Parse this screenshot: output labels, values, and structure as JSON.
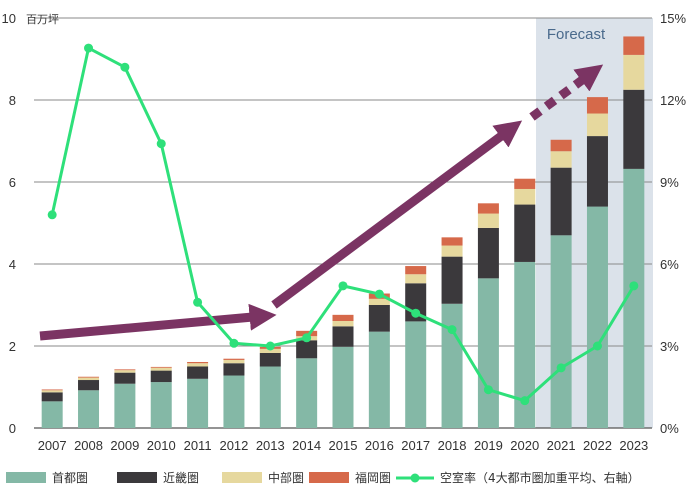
{
  "chart_data": {
    "type": "bar",
    "stacked": true,
    "unit_left": "百万坪",
    "forecast_label": "Forecast",
    "forecast_range": [
      "2021",
      "2023"
    ],
    "categories": [
      "2007",
      "2008",
      "2009",
      "2010",
      "2011",
      "2012",
      "2013",
      "2014",
      "2015",
      "2016",
      "2017",
      "2018",
      "2019",
      "2020",
      "2021",
      "2022",
      "2023"
    ],
    "ylim_left": [
      0,
      10
    ],
    "yticks_left": [
      "0",
      "2",
      "4",
      "6",
      "8",
      "10"
    ],
    "ylim_right": [
      0,
      15
    ],
    "yticks_right": [
      "0%",
      "3%",
      "6%",
      "9%",
      "12%",
      "15%"
    ],
    "series": [
      {
        "name": "首都圏",
        "color": "#84b8a6",
        "values": [
          0.65,
          0.92,
          1.08,
          1.12,
          1.2,
          1.28,
          1.5,
          1.7,
          1.98,
          2.35,
          2.6,
          3.03,
          3.65,
          4.05,
          4.7,
          5.4,
          6.32
        ]
      },
      {
        "name": "近畿圏",
        "color": "#3b393c",
        "values": [
          0.22,
          0.25,
          0.27,
          0.28,
          0.3,
          0.3,
          0.33,
          0.44,
          0.5,
          0.65,
          0.93,
          1.15,
          1.23,
          1.4,
          1.65,
          1.72,
          1.93
        ]
      },
      {
        "name": "中部圏",
        "color": "#e6d89e",
        "values": [
          0.05,
          0.06,
          0.06,
          0.07,
          0.08,
          0.08,
          0.1,
          0.1,
          0.13,
          0.15,
          0.22,
          0.27,
          0.35,
          0.38,
          0.4,
          0.55,
          0.85
        ]
      },
      {
        "name": "福岡圏",
        "color": "#d6694a",
        "values": [
          0.02,
          0.02,
          0.02,
          0.02,
          0.03,
          0.03,
          0.05,
          0.13,
          0.15,
          0.13,
          0.2,
          0.2,
          0.25,
          0.25,
          0.28,
          0.4,
          0.45
        ]
      }
    ],
    "line": {
      "name": "空室率（4大都市圏加重平均、右軸）",
      "color": "#2ee07a",
      "values": [
        7.8,
        13.9,
        13.2,
        10.4,
        4.6,
        3.1,
        3.0,
        3.3,
        5.2,
        4.9,
        4.2,
        3.6,
        1.4,
        1.0,
        2.2,
        3.0,
        5.2
      ]
    },
    "legend_position": "bottom",
    "grid": true
  }
}
